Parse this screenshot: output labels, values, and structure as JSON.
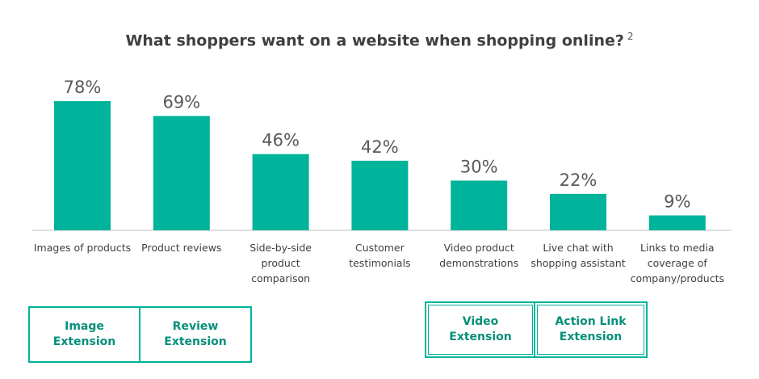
{
  "title": {
    "text": "What shoppers want on a website when shopping online?",
    "note": "2"
  },
  "chart_data": {
    "type": "bar",
    "title": "What shoppers want on a website when shopping online? 2",
    "categories": [
      "Images of products",
      "Product reviews",
      "Side-by-side product comparison",
      "Customer testimonials",
      "Video product demonstrations",
      "Live chat with shopping assistant",
      "Links to media coverage of company/products"
    ],
    "category_lines": [
      [
        "Images of products"
      ],
      [
        "Product reviews"
      ],
      [
        "Side-by-side",
        "product",
        "comparison"
      ],
      [
        "Customer",
        "testimonials"
      ],
      [
        "Video product",
        "demonstrations"
      ],
      [
        "Live chat with",
        "shopping assistant"
      ],
      [
        "Links to media",
        "coverage of",
        "company/products"
      ]
    ],
    "values": [
      78,
      69,
      46,
      42,
      30,
      22,
      9
    ],
    "labels": [
      "78%",
      "69%",
      "46%",
      "42%",
      "30%",
      "22%",
      "9%"
    ],
    "ylim": [
      0,
      100
    ],
    "grid": false,
    "bar_color": "#00b39b"
  },
  "extensions": {
    "image": "Image\nExtension",
    "review": "Review\nExtension",
    "video": "Video\nExtension",
    "action_link": "Action Link\nExtension"
  },
  "colors": {
    "accent": "#00b39b",
    "extension_text": "#068f7a",
    "title": "#404040"
  }
}
